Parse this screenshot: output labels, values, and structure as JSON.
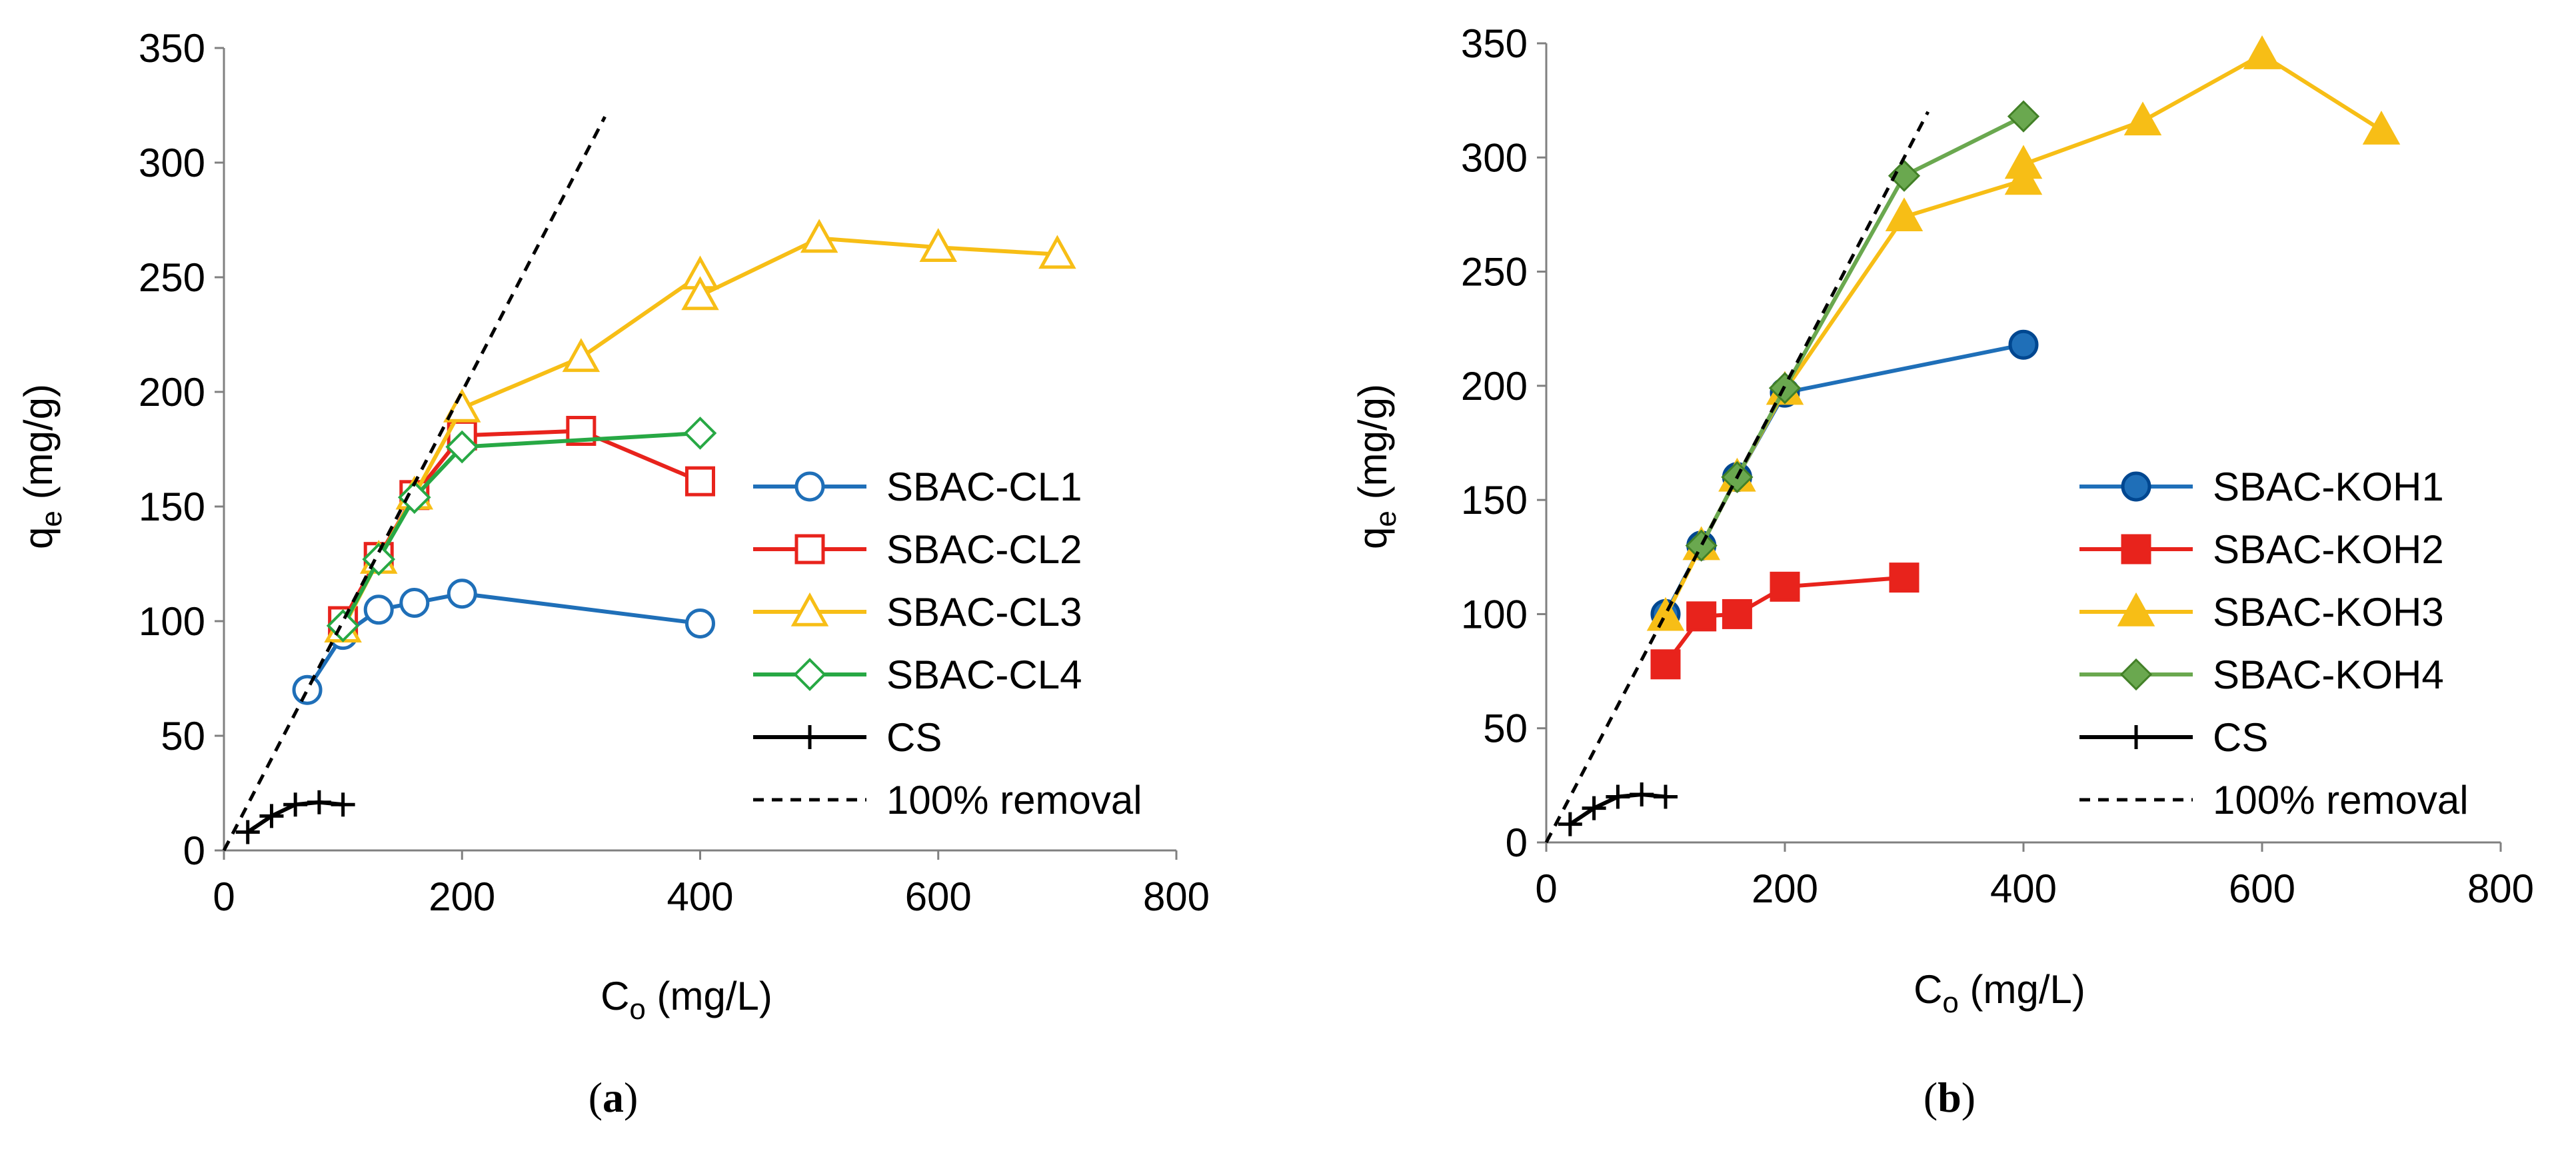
{
  "chart_data": [
    {
      "type": "line",
      "panel_label": "(a)",
      "xlabel": "Co (mg/L)",
      "ylabel": "qe (mg/g)",
      "xlim": [
        0,
        800
      ],
      "ylim": [
        0,
        350
      ],
      "xticks": [
        0,
        200,
        400,
        600,
        800
      ],
      "yticks": [
        0,
        50,
        100,
        150,
        200,
        250,
        300,
        350
      ],
      "grid": false,
      "legend_position": "right",
      "series": [
        {
          "name": "SBAC-CL1",
          "color": "#1f6fb8",
          "marker": "circle-open",
          "x": [
            70,
            100,
            130,
            160,
            200,
            400
          ],
          "y": [
            70,
            94,
            105,
            108,
            112,
            99
          ]
        },
        {
          "name": "SBAC-CL2",
          "color": "#e8231c",
          "marker": "square-open",
          "x": [
            100,
            130,
            160,
            200,
            300,
            400
          ],
          "y": [
            100,
            128,
            155,
            181,
            183,
            161
          ]
        },
        {
          "name": "SBAC-CL3",
          "color": "#f7be16",
          "marker": "triangle-open",
          "x": [
            100,
            130,
            160,
            200,
            300,
            400,
            400,
            500,
            600,
            700
          ],
          "y": [
            97,
            127,
            155,
            193,
            215,
            251,
            242,
            267,
            263,
            260
          ]
        },
        {
          "name": "SBAC-CL4",
          "color": "#27a844",
          "marker": "diamond-open",
          "x": [
            100,
            130,
            160,
            200,
            400
          ],
          "y": [
            98,
            127,
            154,
            176,
            182
          ]
        },
        {
          "name": "CS",
          "color": "#000000",
          "marker": "plus",
          "x": [
            20,
            40,
            60,
            80,
            100
          ],
          "y": [
            8,
            15,
            20,
            21,
            20
          ]
        },
        {
          "name": "100% removal",
          "color": "#000000",
          "marker": "none",
          "dashed": true,
          "x": [
            0,
            320
          ],
          "y": [
            0,
            320
          ]
        }
      ]
    },
    {
      "type": "line",
      "panel_label": "(b)",
      "xlabel": "Co (mg/L)",
      "ylabel": "qe (mg/g)",
      "xlim": [
        0,
        800
      ],
      "ylim": [
        0,
        350
      ],
      "xticks": [
        0,
        200,
        400,
        600,
        800
      ],
      "yticks": [
        0,
        50,
        100,
        150,
        200,
        250,
        300,
        350
      ],
      "grid": false,
      "legend_position": "right",
      "series": [
        {
          "name": "SBAC-KOH1",
          "color": "#1f6fb8",
          "marker": "circle-filled",
          "x": [
            100,
            130,
            160,
            200,
            400
          ],
          "y": [
            100,
            130,
            160,
            197,
            218
          ]
        },
        {
          "name": "SBAC-KOH2",
          "color": "#e8231c",
          "marker": "square-filled",
          "x": [
            100,
            130,
            160,
            200,
            300
          ],
          "y": [
            78,
            99,
            100,
            112,
            116
          ]
        },
        {
          "name": "SBAC-KOH3",
          "color": "#f7be16",
          "marker": "triangle-filled",
          "x": [
            100,
            130,
            160,
            200,
            300,
            400,
            400,
            500,
            600,
            700
          ],
          "y": [
            99,
            130,
            160,
            198,
            274,
            290,
            297,
            316,
            345,
            312
          ]
        },
        {
          "name": "SBAC-KOH4",
          "color": "#6aa84f",
          "marker": "diamond-filled",
          "x": [
            130,
            160,
            200,
            300,
            400
          ],
          "y": [
            130,
            160,
            199,
            292,
            318
          ]
        },
        {
          "name": "CS",
          "color": "#000000",
          "marker": "plus",
          "x": [
            20,
            40,
            60,
            80,
            100
          ],
          "y": [
            8,
            15,
            20,
            21,
            20
          ]
        },
        {
          "name": "100% removal",
          "color": "#000000",
          "marker": "none",
          "dashed": true,
          "x": [
            0,
            320
          ],
          "y": [
            0,
            320
          ]
        }
      ]
    }
  ]
}
